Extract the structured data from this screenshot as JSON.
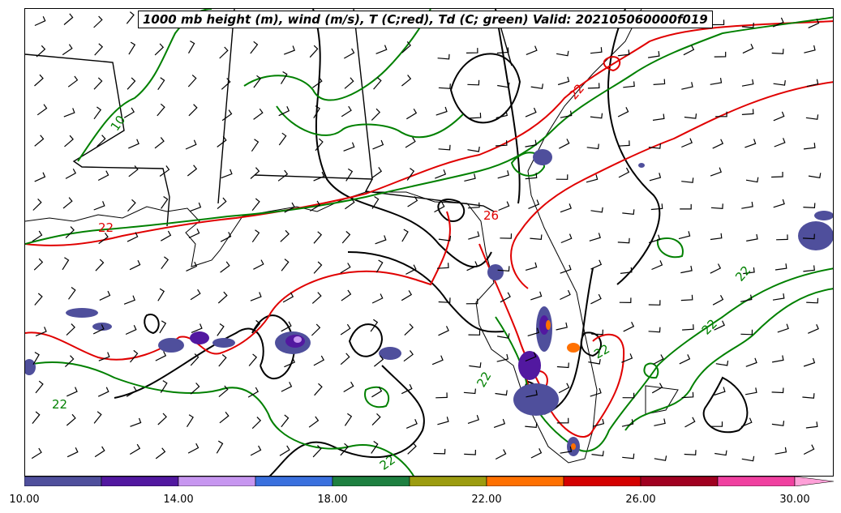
{
  "title": "1000 mb height (m), wind (m/s), T (C;red), Td (C; green) Valid: 202105060000f019",
  "contour_labels": {
    "temperature": [
      {
        "text": "22",
        "color": "#e00000"
      },
      {
        "text": "26",
        "color": "#e00000"
      },
      {
        "text": "22",
        "color": "#e00000"
      }
    ],
    "dewpoint": [
      {
        "text": "10",
        "color": "#008000"
      },
      {
        "text": "22",
        "color": "#008000"
      },
      {
        "text": "22",
        "color": "#008000"
      },
      {
        "text": "22",
        "color": "#008000"
      },
      {
        "text": "22",
        "color": "#008000"
      },
      {
        "text": "22",
        "color": "#008000"
      },
      {
        "text": "22",
        "color": "#008000"
      }
    ]
  },
  "colorbar": {
    "colors": [
      "#4f4f9c",
      "#5218a0",
      "#c796f0",
      "#3a70de",
      "#1e8040",
      "#9c9c10",
      "#ff7000",
      "#d40000",
      "#a00020",
      "#f040a0",
      "#ffa0d8"
    ],
    "ticks": [
      "10.00",
      "14.00",
      "18.00",
      "22.00",
      "26.00",
      "30.00"
    ]
  }
}
